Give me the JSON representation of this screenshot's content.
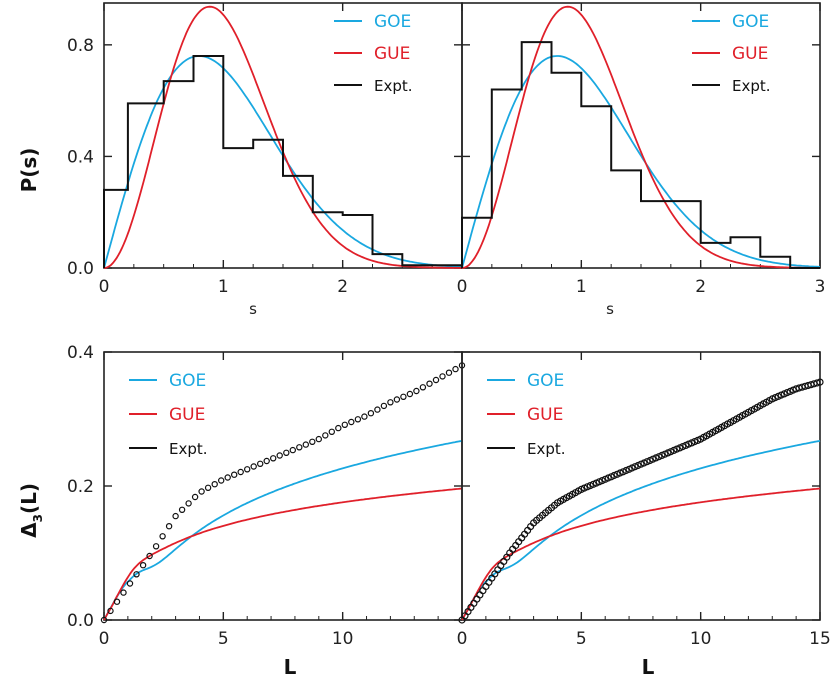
{
  "colors": {
    "goe": "#1aa8e0",
    "gue": "#e0202a",
    "expt": "#111111",
    "axis": "#222222"
  },
  "labels": {
    "ps_ylabel": "P(s)",
    "s_xlabel": "s",
    "delta_ylabel_main": "Δ",
    "delta_ylabel_sub": "3",
    "delta_ylabel_arg": "(L)",
    "L_xlabel": "L"
  },
  "legend": {
    "goe": "GOE",
    "gue": "GUE",
    "expt": "Expt."
  },
  "chart_data": [
    {
      "id": "ps-left",
      "type": "line",
      "xlim": [
        0,
        3
      ],
      "ylim": [
        0,
        0.95
      ],
      "xticks": [
        0,
        1,
        2
      ],
      "yticks": [
        0.0,
        0.4,
        0.8
      ],
      "ytick_labels": [
        "0.0",
        "0.4",
        "0.8"
      ],
      "xlabel": "s",
      "ylabel": "P(s)",
      "series": [
        {
          "name": "GOE",
          "kind": "goe"
        },
        {
          "name": "GUE",
          "kind": "gue"
        },
        {
          "name": "Expt.",
          "kind": "hist",
          "bin_edges": [
            0,
            0.2,
            0.5,
            0.75,
            1.0,
            1.25,
            1.5,
            1.75,
            2.0,
            2.25,
            2.5,
            2.75,
            3.0
          ],
          "values": [
            0.28,
            0.59,
            0.67,
            0.76,
            0.43,
            0.46,
            0.33,
            0.2,
            0.19,
            0.05,
            0.01,
            0.01
          ]
        }
      ]
    },
    {
      "id": "ps-right",
      "type": "line",
      "xlim": [
        0,
        3
      ],
      "ylim": [
        0,
        0.95
      ],
      "xticks": [
        0,
        1,
        2,
        3
      ],
      "yticks": [
        0.0,
        0.4,
        0.8
      ],
      "xlabel": "s",
      "series": [
        {
          "name": "GOE",
          "kind": "goe"
        },
        {
          "name": "GUE",
          "kind": "gue"
        },
        {
          "name": "Expt.",
          "kind": "hist",
          "bin_edges": [
            0,
            0.25,
            0.5,
            0.75,
            1.0,
            1.25,
            1.5,
            1.75,
            2.0,
            2.25,
            2.5,
            2.75,
            3.0
          ],
          "values": [
            0.18,
            0.64,
            0.81,
            0.7,
            0.58,
            0.35,
            0.24,
            0.24,
            0.09,
            0.11,
            0.04,
            0.0
          ]
        }
      ]
    },
    {
      "id": "delta-left",
      "type": "line",
      "xlim": [
        0,
        15
      ],
      "ylim": [
        0,
        0.4
      ],
      "xticks": [
        0,
        5,
        10
      ],
      "yticks": [
        0.0,
        0.2,
        0.4
      ],
      "ytick_labels": [
        "0.0",
        "0.2",
        "0.4"
      ],
      "xlabel": "L",
      "ylabel": "Δ3(L)",
      "series": [
        {
          "name": "GOE",
          "kind": "goe_delta"
        },
        {
          "name": "GUE",
          "kind": "gue_delta"
        },
        {
          "name": "Expt.",
          "kind": "points",
          "x": [
            0,
            1,
            2,
            3,
            4,
            5,
            6,
            7,
            8,
            9,
            10,
            11,
            12,
            13,
            14,
            15
          ],
          "y": [
            0.0,
            0.05,
            0.1,
            0.155,
            0.19,
            0.21,
            0.225,
            0.24,
            0.255,
            0.27,
            0.29,
            0.305,
            0.325,
            0.34,
            0.36,
            0.38
          ]
        }
      ]
    },
    {
      "id": "delta-right",
      "type": "line",
      "xlim": [
        0,
        15
      ],
      "ylim": [
        0,
        0.4
      ],
      "xticks": [
        0,
        5,
        10,
        15
      ],
      "yticks": [
        0.0,
        0.2,
        0.4
      ],
      "xlabel": "L",
      "series": [
        {
          "name": "GOE",
          "kind": "goe_delta"
        },
        {
          "name": "GUE",
          "kind": "gue_delta"
        },
        {
          "name": "Expt.",
          "kind": "points",
          "x": [
            0,
            1,
            2,
            3,
            4,
            5,
            6,
            7,
            8,
            9,
            10,
            11,
            12,
            13,
            14,
            15
          ],
          "y": [
            0.0,
            0.05,
            0.1,
            0.145,
            0.175,
            0.195,
            0.21,
            0.225,
            0.24,
            0.255,
            0.27,
            0.29,
            0.31,
            0.33,
            0.345,
            0.355
          ]
        }
      ]
    }
  ]
}
